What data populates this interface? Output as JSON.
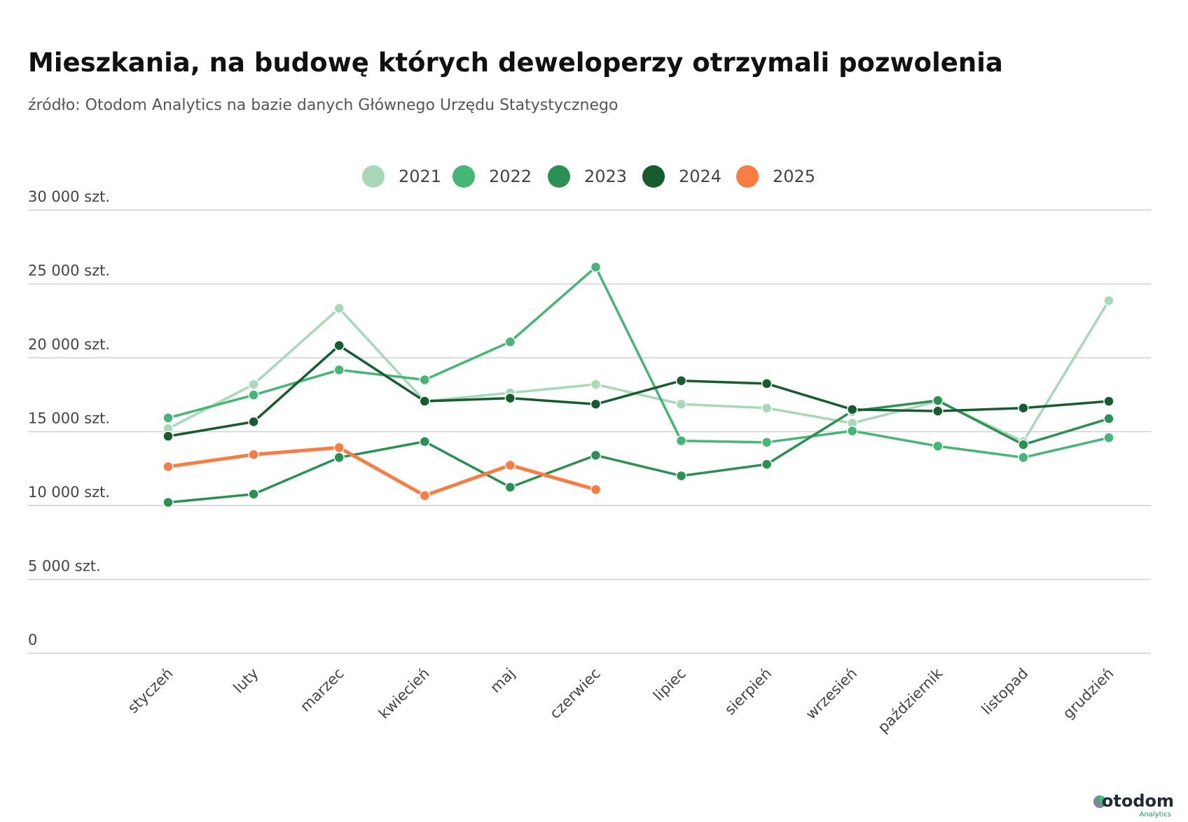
{
  "chart_data": {
    "type": "line",
    "title": "Mieszkania, na budowę których deweloperzy otrzymali pozwolenia",
    "subtitle": "źródło: Otodom Analytics na bazie danych Głównego Urzędu Statystycznego",
    "categories": [
      "styczeń",
      "luty",
      "marzec",
      "kwiecień",
      "maj",
      "czerwiec",
      "lipiec",
      "sierpień",
      "wrzesień",
      "październik",
      "listopad",
      "grudzień"
    ],
    "series": [
      {
        "name": "2021",
        "color": "#a8d8b9",
        "values": [
          15200,
          18200,
          23350,
          17060,
          17630,
          18200,
          16860,
          16600,
          15570,
          17060,
          14330,
          23870
        ]
      },
      {
        "name": "2022",
        "color": "#45b675",
        "values": [
          15930,
          17480,
          19180,
          18510,
          21080,
          26140,
          14380,
          14280,
          15050,
          14020,
          13250,
          14590
        ]
      },
      {
        "name": "2023",
        "color": "#2a9153",
        "values": [
          10210,
          10770,
          13250,
          14330,
          11240,
          13400,
          12010,
          12790,
          16390,
          17110,
          14120,
          15880
        ]
      },
      {
        "name": "2024",
        "color": "#165c2f",
        "values": [
          14690,
          15670,
          20830,
          17060,
          17270,
          16860,
          18450,
          18250,
          16500,
          16390,
          16600,
          17060
        ]
      },
      {
        "name": "2025",
        "color": "#f77d45",
        "values": [
          12630,
          13450,
          13920,
          10670,
          12730,
          11080,
          null,
          null,
          null,
          null,
          null,
          null
        ]
      }
    ],
    "ylim": [
      0,
      30000
    ],
    "yticks": [
      0,
      {
        "value": 5000,
        "label": "5 000 szt."
      },
      {
        "value": 10000,
        "label": "10 000 szt."
      },
      {
        "value": 15000,
        "label": "15 000 szt."
      },
      {
        "value": 20000,
        "label": "20 000 szt."
      },
      {
        "value": 25000,
        "label": "25 000 szt."
      },
      {
        "value": 30000,
        "label": "30 000 szt."
      }
    ],
    "grid": true,
    "legend": "top"
  },
  "logo": {
    "name": "otodom",
    "sub": "Analytics"
  }
}
